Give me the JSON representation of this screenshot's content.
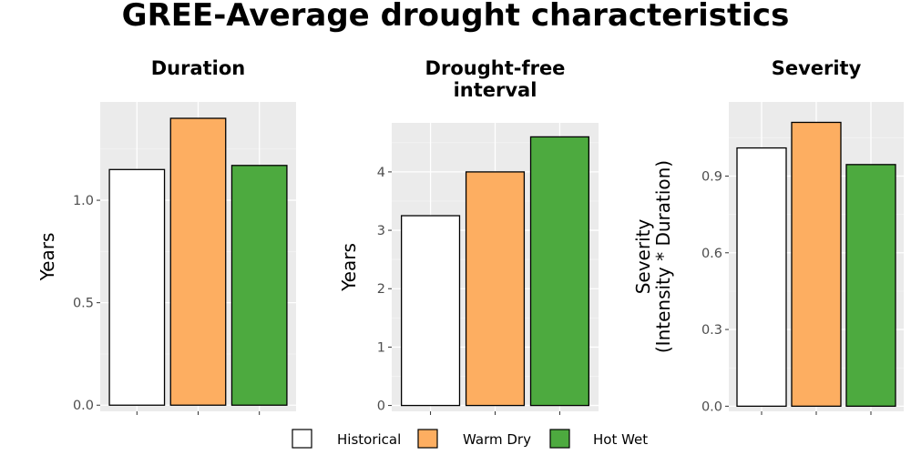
{
  "title": "GREE-Average drought characteristics",
  "colors": {
    "Historical": "#ffffff",
    "Warm Dry": "#fdae61",
    "Hot Wet": "#4daa3f"
  },
  "legend": {
    "items": [
      {
        "label": "Historical",
        "color": "#ffffff"
      },
      {
        "label": "Warm Dry",
        "color": "#fdae61"
      },
      {
        "label": "Hot Wet",
        "color": "#4daa3f"
      }
    ]
  },
  "chart_data": [
    {
      "type": "bar",
      "title": [
        "Duration"
      ],
      "ylabel": [
        "Years"
      ],
      "categories": [
        "Historical",
        "Warm Dry",
        "Hot Wet"
      ],
      "values": [
        1.15,
        1.4,
        1.17
      ],
      "ylim": [
        -0.03,
        1.48
      ],
      "yticks": [
        0.0,
        0.5,
        1.0
      ],
      "ytick_labels": [
        "0.0",
        "0.5",
        "1.0"
      ]
    },
    {
      "type": "bar",
      "title": [
        "Drought-free",
        "interval"
      ],
      "ylabel": [
        "Years"
      ],
      "categories": [
        "Historical",
        "Warm Dry",
        "Hot Wet"
      ],
      "values": [
        3.25,
        4.0,
        4.6
      ],
      "ylim": [
        -0.1,
        4.84
      ],
      "yticks": [
        0,
        1,
        2,
        3,
        4
      ],
      "ytick_labels": [
        "0",
        "1",
        "2",
        "3",
        "4"
      ]
    },
    {
      "type": "bar",
      "title": [
        "Severity"
      ],
      "ylabel": [
        "Severity",
        "(Intensity * Duration)"
      ],
      "categories": [
        "Historical",
        "Warm Dry",
        "Hot Wet"
      ],
      "values": [
        1.01,
        1.11,
        0.945
      ],
      "ylim": [
        -0.02,
        1.19
      ],
      "yticks": [
        0.0,
        0.3,
        0.6,
        0.9
      ],
      "ytick_labels": [
        "0.0",
        "0.3",
        "0.6",
        "0.9"
      ]
    }
  ]
}
